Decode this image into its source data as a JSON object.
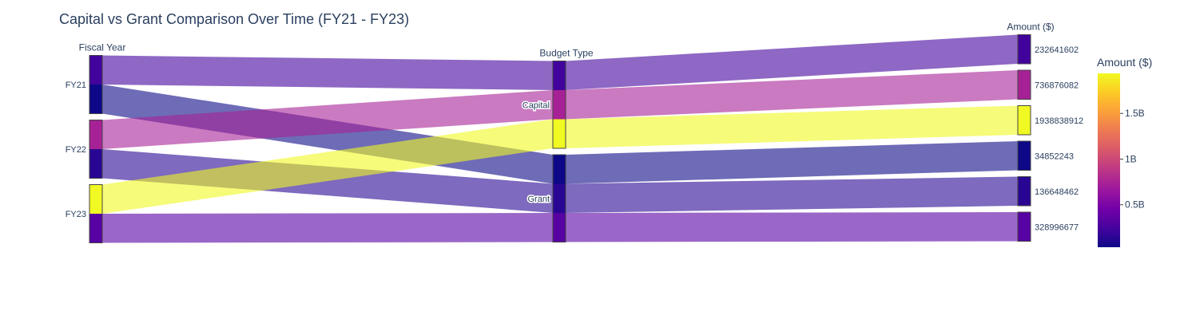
{
  "chart_data": {
    "type": "parallel_categories",
    "title": "Capital vs Grant Comparison Over Time (FY21 - FY23)",
    "dimensions": [
      {
        "label": "Fiscal Year",
        "categories": [
          "FY21",
          "FY22",
          "FY23"
        ]
      },
      {
        "label": "Budget Type",
        "categories": [
          "Capital",
          "Grant"
        ]
      },
      {
        "label": "Amount ($)",
        "categories": [
          "232641602",
          "736876082",
          "1938838912",
          "34852243",
          "136648462",
          "328996677"
        ]
      }
    ],
    "records": [
      {
        "fiscal_year": "FY21",
        "budget_type": "Capital",
        "amount": 232641602
      },
      {
        "fiscal_year": "FY21",
        "budget_type": "Grant",
        "amount": 34852243
      },
      {
        "fiscal_year": "FY22",
        "budget_type": "Capital",
        "amount": 736876082
      },
      {
        "fiscal_year": "FY22",
        "budget_type": "Grant",
        "amount": 136648462
      },
      {
        "fiscal_year": "FY23",
        "budget_type": "Capital",
        "amount": 1938838912
      },
      {
        "fiscal_year": "FY23",
        "budget_type": "Grant",
        "amount": 328996677
      }
    ],
    "colorscale": "Plasma",
    "colorbar": {
      "title": "Amount ($)",
      "tickvals": [
        500000000,
        1000000000,
        1500000000
      ],
      "ticktext": [
        "0.5B",
        "1B",
        "1.5B"
      ]
    }
  }
}
